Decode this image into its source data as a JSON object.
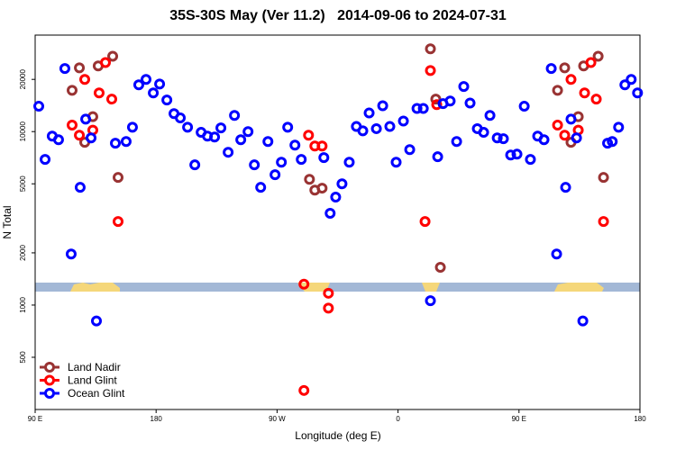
{
  "chart_data": {
    "type": "scatter",
    "title": "35S-30S May (Ver 11.2)   2014-09-06 to 2024-07-31",
    "x_label": "Longitude (deg E)",
    "y_label": "N Total",
    "log_y": true,
    "legend": "bottom-left",
    "xlim": [
      90,
      540
    ],
    "xticks": [
      {
        "value": 90,
        "label": "90 E"
      },
      180,
      {
        "value": 270,
        "label": "90 W"
      },
      {
        "value": 360,
        "label": "0"
      },
      {
        "value": 450,
        "label": "90 E"
      },
      {
        "value": 540,
        "label": "180"
      }
    ],
    "ylim": [
      250,
      36000
    ],
    "yticks": [
      500,
      1000,
      2000,
      5000,
      10000,
      20000
    ],
    "series": [
      {
        "name": "Land Nadir",
        "color": "#993333",
        "x": [
          117.5,
          122.9,
          126.9,
          132.9,
          136.9,
          147.7,
          151.7,
          294.1,
          298.1,
          303.5,
          384.1,
          388.1,
          391.5,
          478.7,
          484.0,
          488.7,
          494.1,
          498.1,
          508.9,
          512.9
        ],
        "values": [
          17300,
          23300,
          8670,
          12200,
          23900,
          27200,
          5440,
          5310,
          4600,
          4720,
          30000,
          15400,
          1650,
          17300,
          23300,
          8670,
          12200,
          23900,
          27200,
          5440
        ]
      },
      {
        "name": "Land Glint",
        "color": "#ff0000",
        "x": [
          117.5,
          122.9,
          126.9,
          132.9,
          137.6,
          142.3,
          147.0,
          151.7,
          290.0,
          290.0,
          293.4,
          298.1,
          303.5,
          308.2,
          308.2,
          380.1,
          384.1,
          388.8,
          478.7,
          484.0,
          488.7,
          494.1,
          498.8,
          503.5,
          507.5,
          512.9
        ],
        "values": [
          10900,
          9530,
          20000,
          10200,
          16700,
          25000,
          15400,
          3030,
          1320,
          322,
          9530,
          8260,
          8260,
          1170,
          960,
          3030,
          22500,
          14300,
          10900,
          9530,
          20000,
          10200,
          16700,
          25000,
          15400,
          3030
        ]
      },
      {
        "name": "Ocean Glint",
        "color": "#0000ff",
        "x": [
          92.7,
          97.4,
          102.7,
          107.4,
          112.1,
          116.8,
          123.5,
          127.6,
          131.6,
          135.6,
          149.7,
          157.7,
          162.4,
          167.1,
          172.5,
          177.9,
          182.6,
          188.0,
          193.3,
          198.0,
          203.4,
          208.8,
          213.5,
          218.2,
          223.5,
          228.2,
          233.6,
          238.3,
          243.0,
          248.4,
          253.1,
          257.8,
          263.2,
          268.5,
          273.2,
          277.9,
          283.3,
          288.0,
          304.8,
          309.5,
          313.6,
          318.3,
          323.7,
          329.0,
          333.8,
          338.5,
          343.9,
          348.6,
          353.9,
          358.6,
          364.0,
          368.7,
          374.1,
          378.8,
          384.1,
          389.5,
          393.5,
          398.8,
          403.6,
          408.9,
          413.6,
          419.0,
          423.7,
          428.4,
          433.8,
          438.4,
          443.8,
          448.5,
          453.9,
          458.5,
          463.9,
          468.6,
          474.0,
          478.0,
          484.7,
          488.7,
          492.8,
          497.5,
          515.9,
          519.4,
          524.1,
          528.8,
          533.5,
          538.2
        ],
        "values": [
          14000,
          6910,
          9420,
          8980,
          23100,
          1970,
          4770,
          11800,
          9200,
          810,
          8570,
          8770,
          10600,
          18600,
          20000,
          16700,
          18800,
          15200,
          12700,
          12000,
          10600,
          6430,
          9900,
          9420,
          9310,
          10500,
          7600,
          12400,
          8980,
          10000,
          6430,
          4770,
          8770,
          5640,
          6660,
          10600,
          8360,
          6910,
          7080,
          3380,
          4190,
          5000,
          6660,
          10700,
          10100,
          12800,
          10400,
          14100,
          10700,
          6660,
          11500,
          7870,
          13600,
          13600,
          1060,
          7160,
          14500,
          15000,
          8770,
          18200,
          14600,
          10400,
          9900,
          12400,
          9200,
          9100,
          7330,
          7410,
          14000,
          6910,
          9420,
          8980,
          23100,
          1970,
          4770,
          11800,
          9200,
          810,
          8570,
          8770,
          10600,
          18600,
          20000,
          16700
        ]
      }
    ]
  }
}
